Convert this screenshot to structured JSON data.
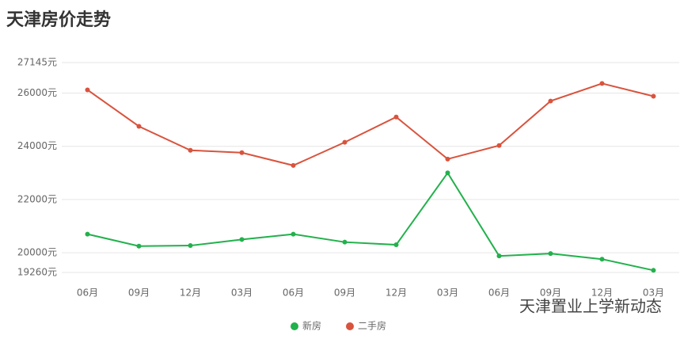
{
  "chart_data": {
    "type": "line",
    "title": "天津房价走势",
    "categories": [
      "06月",
      "09月",
      "12月",
      "03月",
      "06月",
      "09月",
      "12月",
      "03月",
      "06月",
      "09月",
      "12月",
      "03月"
    ],
    "series": [
      {
        "name": "新房",
        "color": "#22b14c",
        "values": [
          20700,
          20250,
          20270,
          20500,
          20700,
          20400,
          20300,
          23000,
          19880,
          19970,
          19760,
          19340
        ]
      },
      {
        "name": "二手房",
        "color": "#d9533d",
        "values": [
          26120,
          24750,
          23850,
          23760,
          23280,
          24150,
          25100,
          23520,
          24030,
          25700,
          26360,
          25880
        ]
      }
    ],
    "ylim": [
      19260,
      27145
    ],
    "yticks": [
      {
        "value": 19260,
        "label": "19260元"
      },
      {
        "value": 20000,
        "label": "20000元"
      },
      {
        "value": 22000,
        "label": "22000元"
      },
      {
        "value": 24000,
        "label": "24000元"
      },
      {
        "value": 26000,
        "label": "26000元"
      },
      {
        "value": 27145,
        "label": "27145元"
      }
    ],
    "grid": true,
    "legend": "bottom",
    "watermark": "天津置业上学新动态"
  }
}
